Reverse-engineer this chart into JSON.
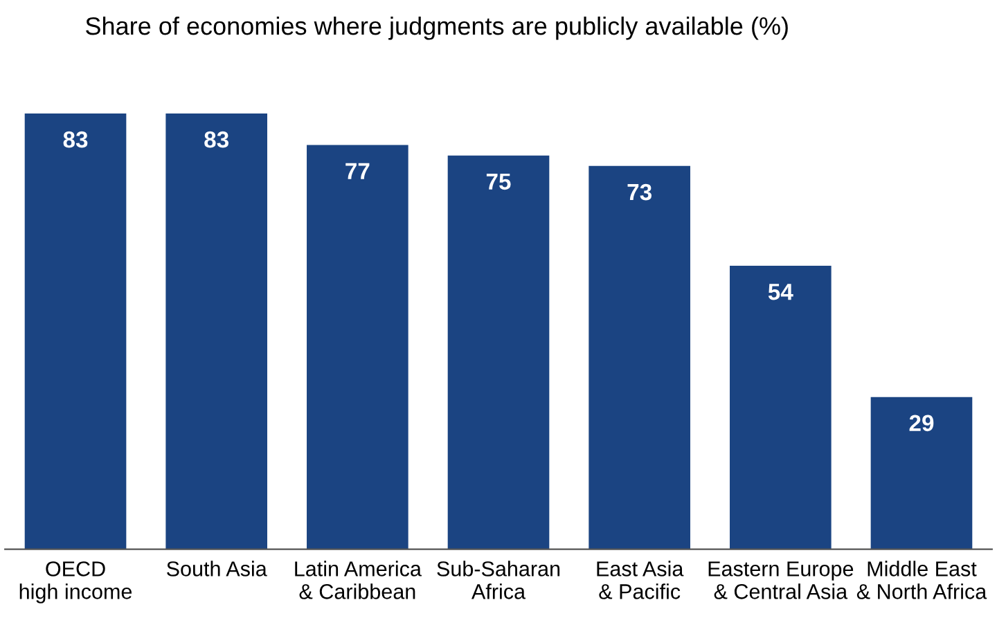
{
  "chart_data": {
    "type": "bar",
    "title": "Share of economies where judgments are publicly available (%)",
    "categories": [
      "OECD\nhigh income",
      "South Asia",
      "Latin America\n& Caribbean",
      "Sub-Saharan\nAfrica",
      "East Asia\n& Pacific",
      "Eastern Europe\n& Central Asia",
      "Middle East\n& North Africa"
    ],
    "values": [
      83,
      83,
      77,
      75,
      73,
      54,
      29
    ],
    "color": "#1b4482",
    "data_labels": true,
    "grid": false,
    "legend": false
  }
}
